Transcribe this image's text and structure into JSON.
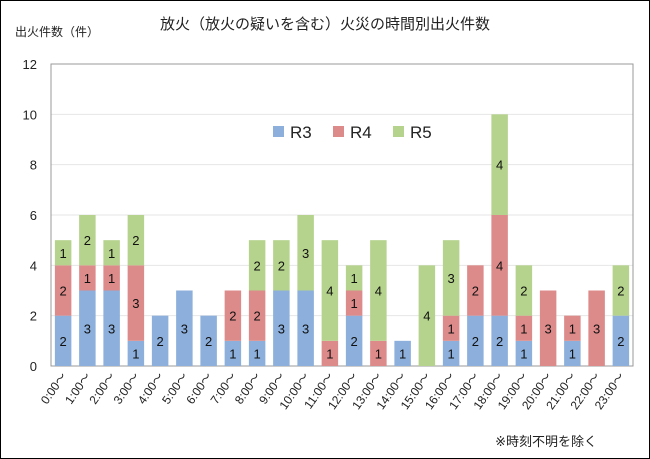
{
  "chart_data": {
    "type": "bar",
    "stacked": true,
    "title": "放火（放火の疑いを含む）火災の時間別出火件数",
    "ylabel": "出火件数（件）",
    "note": "※時刻不明を除く",
    "ylim": [
      0,
      12
    ],
    "yticks": [
      0,
      2,
      4,
      6,
      8,
      10,
      12
    ],
    "grid": true,
    "legend": "center-top",
    "categories": [
      "0:00～",
      "1:00～",
      "2:00～",
      "3:00～",
      "4:00～",
      "5:00～",
      "6:00～",
      "7:00～",
      "8:00～",
      "9:00～",
      "10:00～",
      "11:00～",
      "12:00～",
      "13:00～",
      "14:00～",
      "15:00～",
      "16:00～",
      "17:00～",
      "18:00～",
      "19:00～",
      "20:00～",
      "21:00～",
      "22:00～",
      "23:00～"
    ],
    "series": [
      {
        "name": "R3",
        "color": "#8cafdb",
        "values": [
          2,
          3,
          3,
          1,
          2,
          3,
          2,
          1,
          1,
          3,
          3,
          0,
          2,
          0,
          1,
          0,
          1,
          2,
          2,
          1,
          0,
          1,
          0,
          2
        ]
      },
      {
        "name": "R4",
        "color": "#dc8b8a",
        "values": [
          2,
          1,
          1,
          3,
          0,
          0,
          0,
          2,
          2,
          0,
          0,
          1,
          1,
          1,
          0,
          0,
          1,
          2,
          4,
          1,
          3,
          1,
          3,
          0
        ]
      },
      {
        "name": "R5",
        "color": "#b5d38c",
        "values": [
          1,
          2,
          1,
          2,
          0,
          0,
          0,
          0,
          2,
          2,
          3,
          4,
          1,
          4,
          0,
          4,
          3,
          0,
          4,
          2,
          0,
          0,
          0,
          2
        ]
      }
    ]
  }
}
